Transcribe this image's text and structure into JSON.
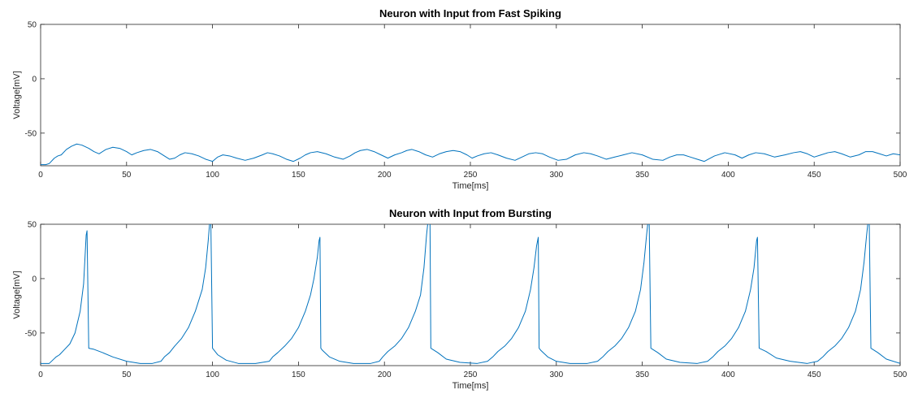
{
  "chart_data": [
    {
      "type": "line",
      "title": "Neuron with Input from Fast Spiking",
      "xlabel": "Time[ms]",
      "ylabel": "Voltage[mV]",
      "xlim": [
        0,
        500
      ],
      "ylim": [
        -80,
        50
      ],
      "xticks": [
        0,
        50,
        100,
        150,
        200,
        250,
        300,
        350,
        400,
        450,
        500
      ],
      "yticks": [
        -50,
        0,
        50
      ],
      "grid": false,
      "color": "#0072BD",
      "series": [
        {
          "x": [
            0,
            3,
            5,
            8,
            10,
            12,
            15,
            18,
            21,
            24,
            28,
            31,
            34,
            38,
            42,
            46,
            50,
            53,
            56,
            60,
            64,
            68,
            72,
            75,
            78,
            81,
            84,
            88,
            92,
            96,
            100,
            103,
            106,
            110,
            114,
            119,
            124,
            129,
            132,
            135,
            139,
            143,
            147,
            151,
            154,
            157,
            161,
            166,
            171,
            176,
            180,
            183,
            186,
            190,
            194,
            198,
            202,
            206,
            210,
            213,
            216,
            220,
            224,
            228,
            232,
            236,
            240,
            244,
            248,
            251,
            254,
            258,
            262,
            266,
            271,
            276,
            280,
            284,
            288,
            292,
            296,
            301,
            306,
            311,
            316,
            320,
            324,
            329,
            334,
            339,
            344,
            350,
            356,
            362,
            366,
            370,
            374,
            378,
            382,
            386,
            392,
            398,
            404,
            408,
            412,
            416,
            421,
            427,
            433,
            438,
            442,
            446,
            450,
            454,
            458,
            462,
            466,
            471,
            476,
            480,
            484,
            488,
            492,
            496,
            500
          ],
          "y": [
            -79,
            -79,
            -78,
            -73,
            -71,
            -70,
            -65,
            -62,
            -60,
            -61,
            -64,
            -67,
            -69,
            -65,
            -63,
            -64,
            -67,
            -70,
            -68,
            -66,
            -65,
            -67,
            -71,
            -74,
            -73,
            -70,
            -68,
            -69,
            -71,
            -74,
            -76,
            -72,
            -70,
            -71,
            -73,
            -75,
            -73,
            -70,
            -68,
            -69,
            -71,
            -74,
            -76,
            -73,
            -70,
            -68,
            -67,
            -69,
            -72,
            -74,
            -71,
            -68,
            -66,
            -65,
            -67,
            -70,
            -73,
            -70,
            -68,
            -66,
            -65,
            -67,
            -70,
            -72,
            -69,
            -67,
            -66,
            -67,
            -70,
            -73,
            -71,
            -69,
            -68,
            -70,
            -73,
            -75,
            -72,
            -69,
            -68,
            -69,
            -72,
            -75,
            -74,
            -70,
            -68,
            -69,
            -71,
            -74,
            -72,
            -70,
            -68,
            -70,
            -74,
            -75,
            -72,
            -70,
            -70,
            -72,
            -74,
            -76,
            -71,
            -68,
            -70,
            -73,
            -70,
            -68,
            -69,
            -72,
            -70,
            -68,
            -67,
            -69,
            -72,
            -70,
            -68,
            -67,
            -69,
            -72,
            -70,
            -67,
            -67,
            -69,
            -71,
            -69,
            -70
          ]
        }
      ]
    },
    {
      "type": "line",
      "title": "Neuron with Input from Bursting",
      "xlabel": "Time[ms]",
      "ylabel": "Voltage[mV]",
      "xlim": [
        0,
        500
      ],
      "ylim": [
        -80,
        50
      ],
      "xticks": [
        0,
        50,
        100,
        150,
        200,
        250,
        300,
        350,
        400,
        450,
        500
      ],
      "yticks": [
        -50,
        0,
        50
      ],
      "grid": false,
      "color": "#0072BD",
      "series": [
        {
          "x": [
            0,
            5,
            7,
            9,
            11,
            14,
            17,
            20,
            23,
            25,
            26.5,
            27,
            28,
            31,
            36,
            42,
            50,
            58,
            65,
            70,
            72,
            75,
            78,
            82,
            86,
            90,
            94,
            96,
            97.5,
            98.5,
            99,
            100,
            103,
            108,
            115,
            125,
            133,
            135,
            138,
            142,
            146,
            150,
            154,
            157,
            159,
            161,
            162,
            162.5,
            163,
            164,
            168,
            174,
            182,
            192,
            197,
            199,
            202,
            206,
            210,
            214,
            218,
            221,
            223,
            224.5,
            225.5,
            226.5,
            227,
            231,
            236,
            244,
            254,
            260,
            263,
            266,
            270,
            274,
            278,
            282,
            285,
            287,
            288.5,
            289.5,
            290,
            291,
            295,
            300,
            308,
            318,
            324,
            327,
            330,
            334,
            338,
            342,
            346,
            349,
            351,
            352.5,
            353.5,
            354,
            355,
            359,
            364,
            372,
            382,
            388,
            391,
            394,
            398,
            402,
            406,
            410,
            413,
            415,
            416.5,
            417,
            418,
            422,
            428,
            436,
            446,
            452,
            455,
            458,
            462,
            466,
            470,
            474,
            477,
            479,
            480.5,
            481.5,
            482,
            483,
            487,
            492,
            500
          ],
          "y": [
            -78,
            -78,
            -75,
            -72,
            -70,
            -65,
            -60,
            -50,
            -30,
            -5,
            40,
            44,
            -64,
            -65,
            -68,
            -72,
            -76,
            -78,
            -78,
            -76,
            -72,
            -68,
            -62,
            -55,
            -45,
            -30,
            -10,
            10,
            35,
            55,
            55,
            -64,
            -70,
            -75,
            -78,
            -78,
            -76,
            -72,
            -68,
            -62,
            -55,
            -45,
            -30,
            -15,
            0,
            20,
            35,
            38,
            -64,
            -66,
            -72,
            -76,
            -78,
            -78,
            -76,
            -72,
            -67,
            -62,
            -55,
            -45,
            -30,
            -15,
            10,
            40,
            55,
            55,
            -64,
            -68,
            -74,
            -77,
            -78,
            -76,
            -72,
            -67,
            -62,
            -55,
            -45,
            -30,
            -10,
            10,
            30,
            38,
            -64,
            -66,
            -72,
            -76,
            -78,
            -78,
            -76,
            -72,
            -67,
            -62,
            -55,
            -45,
            -30,
            -10,
            15,
            40,
            55,
            55,
            -64,
            -68,
            -74,
            -77,
            -78,
            -76,
            -72,
            -67,
            -62,
            -55,
            -45,
            -30,
            -10,
            10,
            35,
            38,
            -64,
            -67,
            -73,
            -76,
            -78,
            -76,
            -72,
            -67,
            -62,
            -55,
            -45,
            -30,
            -10,
            15,
            40,
            55,
            55,
            -64,
            -68,
            -74,
            -78
          ]
        }
      ]
    }
  ]
}
